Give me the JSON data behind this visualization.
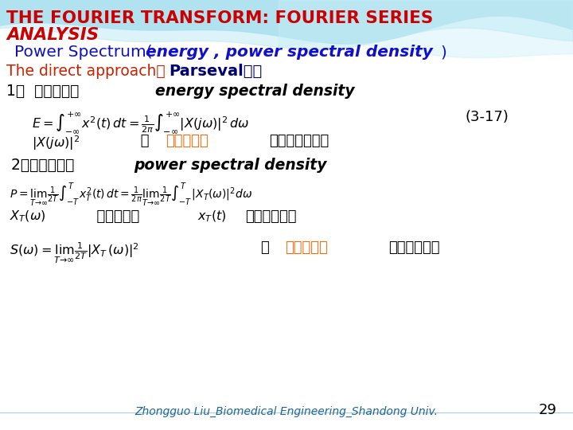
{
  "title_line1": "THE FOURIER TRANSFORM: FOURIER SERIES",
  "title_line2": "ANALYSIS",
  "title_color": "#cc0000",
  "bg_color": "#ffffff",
  "footer_text": "Zhongguo Liu_Biomedical Engineering_Shandong Univ.",
  "page_number": "29",
  "line3_red": "The direct approach：",
  "line3_bold": "Parseval定理",
  "line4": "1）  能量型信号  ",
  "line4_italic": "energy spectral density",
  "eq1_label": "(3-17)",
  "eq2_text_orange": "为能量谱密度，简称能量谱。",
  "line5_prefix": "2）功率型信号 ",
  "line5_italic": "power spectral density",
  "eq4_text": "是截断信号 ",
  "eq4_text2": "的傅里叶变换",
  "eq5_text_orange": "为功率谱密度，简称功率谱"
}
